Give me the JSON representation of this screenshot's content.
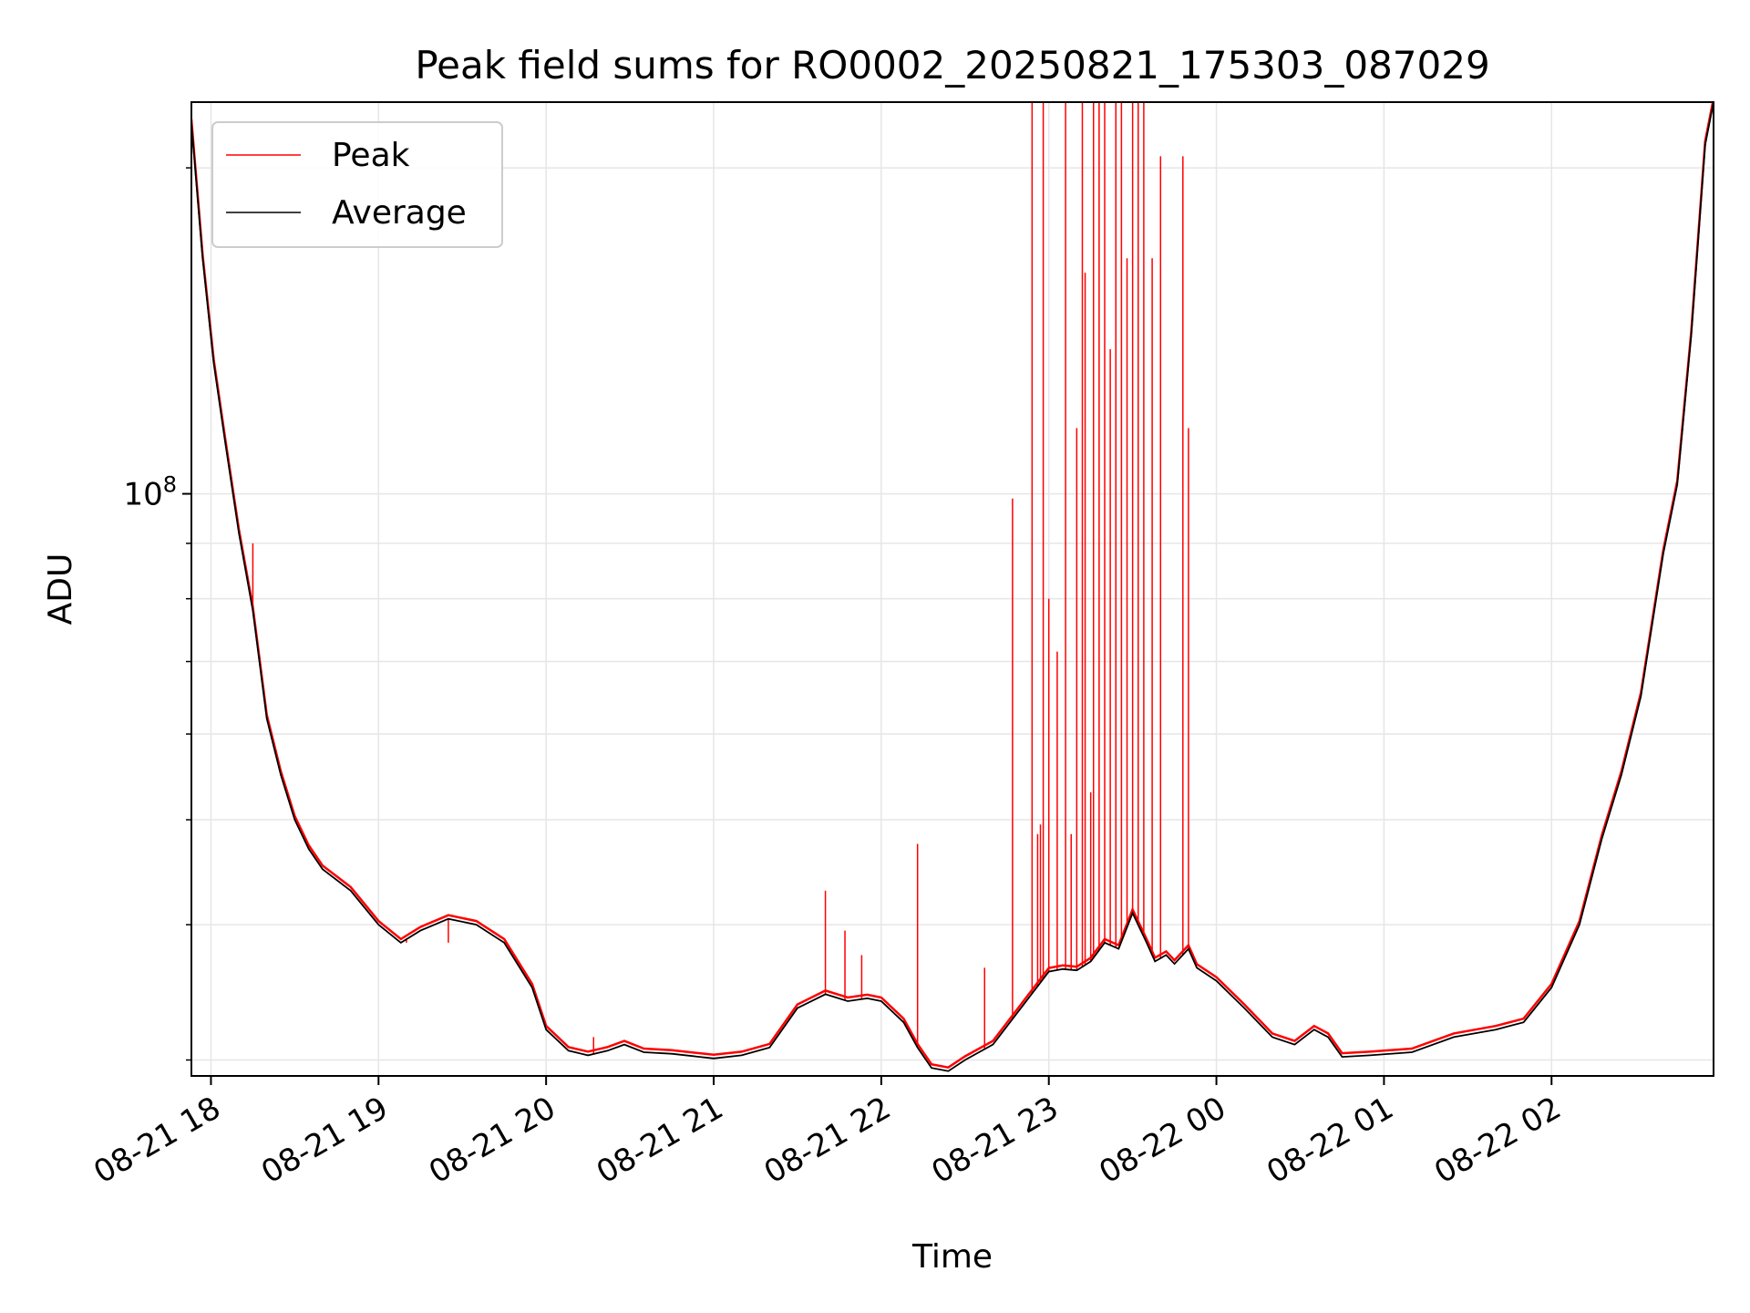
{
  "chart_data": {
    "type": "line",
    "title": "Peak field sums for RO0002_20250821_175303_087029",
    "xlabel": "Time",
    "ylabel": "ADU",
    "y_scale": "log",
    "y_major_tick": {
      "value": 100000000,
      "base": "10",
      "exponent": "8"
    },
    "xlim": [
      "2025-08-21T17:53",
      "2025-08-22T02:58"
    ],
    "ylim": [
      29000000,
      230000000
    ],
    "x_ticks": [
      {
        "t": "2025-08-21T18:00",
        "label": "08-21 18"
      },
      {
        "t": "2025-08-21T19:00",
        "label": "08-21 19"
      },
      {
        "t": "2025-08-21T20:00",
        "label": "08-21 20"
      },
      {
        "t": "2025-08-21T21:00",
        "label": "08-21 21"
      },
      {
        "t": "2025-08-21T22:00",
        "label": "08-21 22"
      },
      {
        "t": "2025-08-21T23:00",
        "label": "08-21 23"
      },
      {
        "t": "2025-08-22T00:00",
        "label": "08-22 00"
      },
      {
        "t": "2025-08-22T01:00",
        "label": "08-22 01"
      },
      {
        "t": "2025-08-22T02:00",
        "label": "08-22 02"
      }
    ],
    "y_minor_ticks": [
      30000000,
      40000000,
      50000000,
      60000000,
      70000000,
      80000000,
      90000000,
      200000000
    ],
    "grid": true,
    "legend_position": "upper-left",
    "series": [
      {
        "name": "Peak",
        "color": "#ff0000",
        "spikes": [
          {
            "t": "2025-08-21T18:15",
            "v": 90000000
          },
          {
            "t": "2025-08-21T18:20",
            "v": 63000000
          },
          {
            "t": "2025-08-21T19:10",
            "v": 38500000
          },
          {
            "t": "2025-08-21T19:25",
            "v": 38500000
          },
          {
            "t": "2025-08-21T20:17",
            "v": 31500000
          },
          {
            "t": "2025-08-21T20:28",
            "v": 31000000
          },
          {
            "t": "2025-08-21T21:40",
            "v": 43000000
          },
          {
            "t": "2025-08-21T21:47",
            "v": 39500000
          },
          {
            "t": "2025-08-21T21:53",
            "v": 37500000
          },
          {
            "t": "2025-08-21T22:13",
            "v": 47500000
          },
          {
            "t": "2025-08-21T22:37",
            "v": 36500000
          },
          {
            "t": "2025-08-21T22:47",
            "v": 99000000
          },
          {
            "t": "2025-08-21T22:54",
            "v": 230000000
          },
          {
            "t": "2025-08-21T22:56",
            "v": 48500000
          },
          {
            "t": "2025-08-21T22:57",
            "v": 49500000
          },
          {
            "t": "2025-08-21T22:58",
            "v": 230000000
          },
          {
            "t": "2025-08-21T23:00",
            "v": 80000000
          },
          {
            "t": "2025-08-21T23:03",
            "v": 71500000
          },
          {
            "t": "2025-08-21T23:06",
            "v": 230000000
          },
          {
            "t": "2025-08-21T23:08",
            "v": 48500000
          },
          {
            "t": "2025-08-21T23:10",
            "v": 115000000
          },
          {
            "t": "2025-08-21T23:12",
            "v": 230000000
          },
          {
            "t": "2025-08-21T23:13",
            "v": 160000000
          },
          {
            "t": "2025-08-21T23:15",
            "v": 53000000
          },
          {
            "t": "2025-08-21T23:16",
            "v": 230000000
          },
          {
            "t": "2025-08-21T23:18",
            "v": 230000000
          },
          {
            "t": "2025-08-21T23:20",
            "v": 230000000
          },
          {
            "t": "2025-08-21T23:22",
            "v": 136000000
          },
          {
            "t": "2025-08-21T23:24",
            "v": 230000000
          },
          {
            "t": "2025-08-21T23:26",
            "v": 230000000
          },
          {
            "t": "2025-08-21T23:28",
            "v": 165000000
          },
          {
            "t": "2025-08-21T23:30",
            "v": 230000000
          },
          {
            "t": "2025-08-21T23:32",
            "v": 230000000
          },
          {
            "t": "2025-08-21T23:34",
            "v": 230000000
          },
          {
            "t": "2025-08-21T23:37",
            "v": 165000000
          },
          {
            "t": "2025-08-21T23:40",
            "v": 205000000
          },
          {
            "t": "2025-08-21T23:48",
            "v": 205000000
          },
          {
            "t": "2025-08-21T23:50",
            "v": 115000000
          }
        ]
      },
      {
        "name": "Average",
        "color": "#000000",
        "points": [
          [
            "2025-08-21T17:53",
            220000000
          ],
          [
            "2025-08-21T17:57",
            165000000
          ],
          [
            "2025-08-21T18:01",
            132000000
          ],
          [
            "2025-08-21T18:05",
            112000000
          ],
          [
            "2025-08-21T18:10",
            92000000
          ],
          [
            "2025-08-21T18:15",
            78000000
          ],
          [
            "2025-08-21T18:20",
            62000000
          ],
          [
            "2025-08-21T18:25",
            55000000
          ],
          [
            "2025-08-21T18:30",
            50000000
          ],
          [
            "2025-08-21T18:35",
            47000000
          ],
          [
            "2025-08-21T18:40",
            45000000
          ],
          [
            "2025-08-21T18:50",
            43000000
          ],
          [
            "2025-08-21T19:00",
            40000000
          ],
          [
            "2025-08-21T19:08",
            38500000
          ],
          [
            "2025-08-21T19:15",
            39500000
          ],
          [
            "2025-08-21T19:25",
            40500000
          ],
          [
            "2025-08-21T19:35",
            40000000
          ],
          [
            "2025-08-21T19:45",
            38500000
          ],
          [
            "2025-08-21T19:55",
            35000000
          ],
          [
            "2025-08-21T20:00",
            32000000
          ],
          [
            "2025-08-21T20:08",
            30600000
          ],
          [
            "2025-08-21T20:15",
            30300000
          ],
          [
            "2025-08-21T20:22",
            30600000
          ],
          [
            "2025-08-21T20:28",
            31000000
          ],
          [
            "2025-08-21T20:35",
            30500000
          ],
          [
            "2025-08-21T20:45",
            30400000
          ],
          [
            "2025-08-21T21:00",
            30100000
          ],
          [
            "2025-08-21T21:10",
            30300000
          ],
          [
            "2025-08-21T21:20",
            30800000
          ],
          [
            "2025-08-21T21:30",
            33500000
          ],
          [
            "2025-08-21T21:40",
            34500000
          ],
          [
            "2025-08-21T21:48",
            34000000
          ],
          [
            "2025-08-21T21:55",
            34200000
          ],
          [
            "2025-08-21T22:00",
            34000000
          ],
          [
            "2025-08-21T22:08",
            32500000
          ],
          [
            "2025-08-21T22:13",
            30800000
          ],
          [
            "2025-08-21T22:18",
            29500000
          ],
          [
            "2025-08-21T22:24",
            29300000
          ],
          [
            "2025-08-21T22:30",
            30000000
          ],
          [
            "2025-08-21T22:40",
            31000000
          ],
          [
            "2025-08-21T22:50",
            33500000
          ],
          [
            "2025-08-21T23:00",
            36200000
          ],
          [
            "2025-08-21T23:05",
            36400000
          ],
          [
            "2025-08-21T23:10",
            36300000
          ],
          [
            "2025-08-21T23:15",
            37000000
          ],
          [
            "2025-08-21T23:20",
            38500000
          ],
          [
            "2025-08-21T23:25",
            38000000
          ],
          [
            "2025-08-21T23:30",
            41000000
          ],
          [
            "2025-08-21T23:35",
            38500000
          ],
          [
            "2025-08-21T23:38",
            37000000
          ],
          [
            "2025-08-21T23:42",
            37500000
          ],
          [
            "2025-08-21T23:45",
            36800000
          ],
          [
            "2025-08-21T23:50",
            38000000
          ],
          [
            "2025-08-21T23:53",
            36500000
          ],
          [
            "2025-08-22T00:00",
            35500000
          ],
          [
            "2025-08-22T00:10",
            33500000
          ],
          [
            "2025-08-22T00:20",
            31500000
          ],
          [
            "2025-08-22T00:28",
            31000000
          ],
          [
            "2025-08-22T00:35",
            32000000
          ],
          [
            "2025-08-22T00:40",
            31500000
          ],
          [
            "2025-08-22T00:45",
            30200000
          ],
          [
            "2025-08-22T00:55",
            30300000
          ],
          [
            "2025-08-22T01:10",
            30500000
          ],
          [
            "2025-08-22T01:25",
            31500000
          ],
          [
            "2025-08-22T01:40",
            32000000
          ],
          [
            "2025-08-22T01:50",
            32500000
          ],
          [
            "2025-08-22T02:00",
            35000000
          ],
          [
            "2025-08-22T02:10",
            40000000
          ],
          [
            "2025-08-22T02:18",
            48000000
          ],
          [
            "2025-08-22T02:25",
            55000000
          ],
          [
            "2025-08-22T02:32",
            65000000
          ],
          [
            "2025-08-22T02:40",
            88000000
          ],
          [
            "2025-08-22T02:45",
            102000000
          ],
          [
            "2025-08-22T02:50",
            140000000
          ],
          [
            "2025-08-22T02:55",
            210000000
          ],
          [
            "2025-08-22T02:58",
            230000000
          ]
        ]
      }
    ]
  }
}
